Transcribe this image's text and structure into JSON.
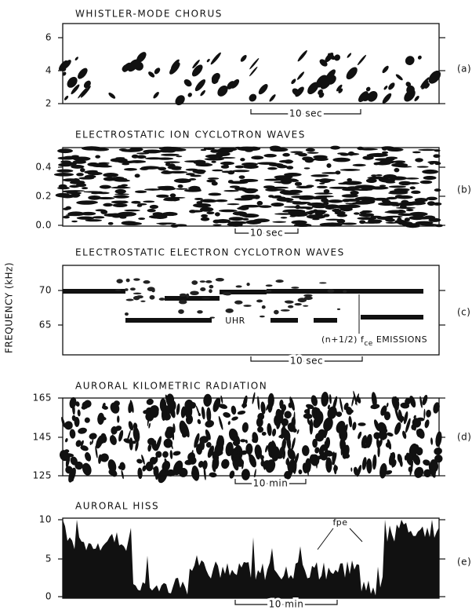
{
  "figure": {
    "ylabel": "FREQUENCY (kHz)",
    "panels": [
      {
        "title": "WHISTLER-MODE CHORUS",
        "yticks": [
          "6",
          "4",
          "2"
        ],
        "label": "(a)",
        "scale": "10 sec"
      },
      {
        "title": "ELECTROSTATIC ION CYCLOTRON WAVES",
        "yticks": [
          "0.4",
          "0.2",
          "0.0"
        ],
        "label": "(b)",
        "scale": "10 sec"
      },
      {
        "title": "ELECTROSTATIC ELECTRON CYCLOTRON WAVES",
        "yticks": [
          "70",
          "65"
        ],
        "label": "(c)",
        "scale": "10 sec",
        "annotations": [
          "UHR",
          {
            "text": "(n+1/2) f",
            "subscript": "ce",
            "suffix": " EMISSIONS"
          }
        ]
      },
      {
        "title": "AURORAL KILOMETRIC RADIATION",
        "yticks": [
          "165",
          "145",
          "125"
        ],
        "label": "(d)",
        "scale": "10 min"
      },
      {
        "title": "AURORAL HISS",
        "yticks": [
          "10",
          "5",
          "0"
        ],
        "label": "(e)",
        "scale": "10 min",
        "annotations": [
          "fpe"
        ]
      }
    ]
  }
}
